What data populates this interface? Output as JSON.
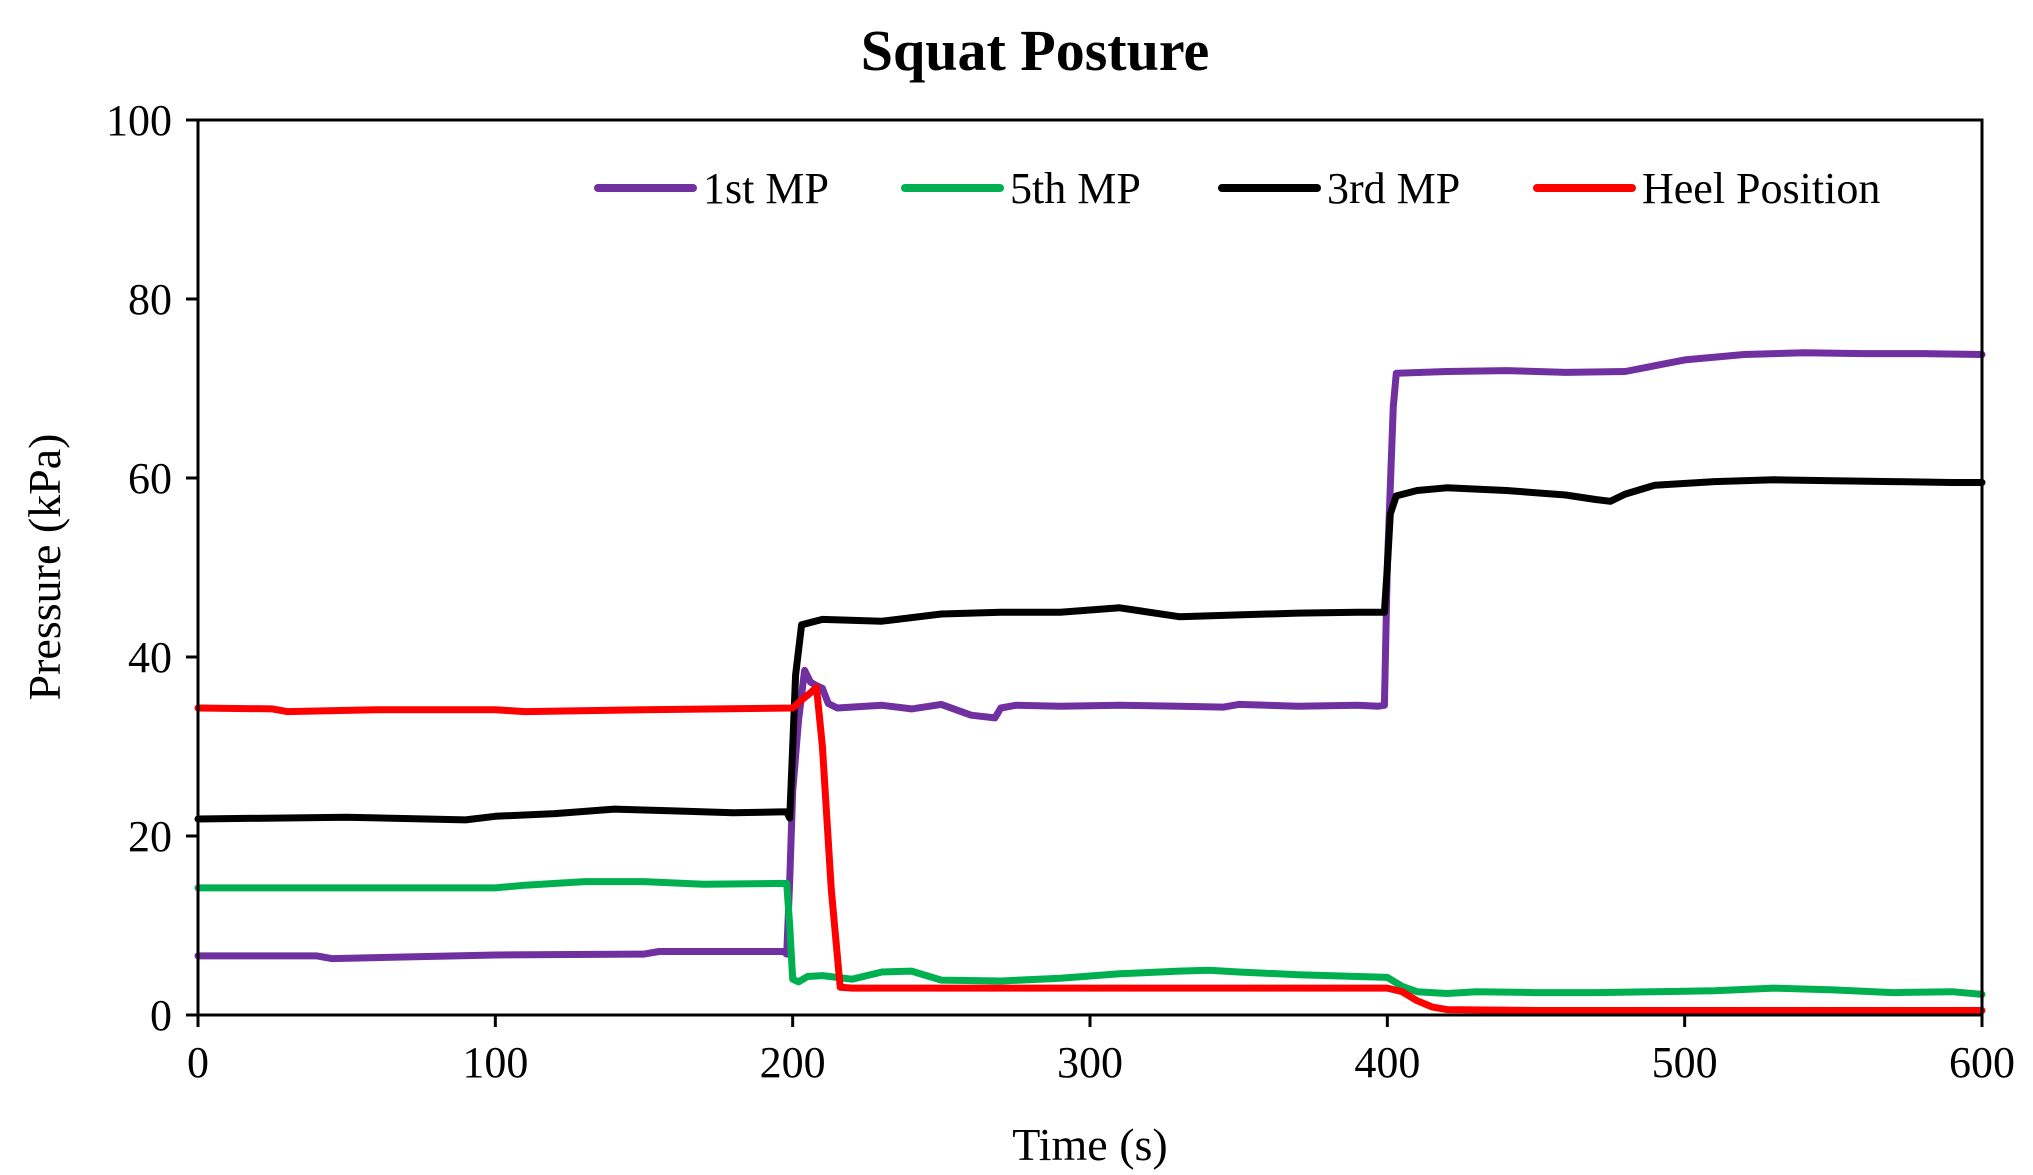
{
  "chart_data": {
    "type": "line",
    "title": "Squat Posture",
    "xlabel": "Time (s)",
    "ylabel": "Pressure (kPa)",
    "xlim": [
      0,
      600
    ],
    "ylim": [
      0,
      100
    ],
    "xticks": [
      0,
      100,
      200,
      300,
      400,
      500,
      600
    ],
    "yticks": [
      0,
      20,
      40,
      60,
      80,
      100
    ],
    "grid": false,
    "legend_position": "top-right",
    "series": [
      {
        "name": "1st MP",
        "color": "#7030A0",
        "x": [
          0,
          40,
          45,
          100,
          150,
          155,
          197,
          198,
          199,
          200,
          202,
          204,
          206,
          208,
          210,
          212,
          215,
          230,
          240,
          250,
          260,
          268,
          270,
          275,
          290,
          310,
          330,
          345,
          350,
          370,
          390,
          397,
          399,
          400,
          402,
          403,
          420,
          440,
          460,
          480,
          500,
          520,
          540,
          560,
          580,
          600
        ],
        "y": [
          6.6,
          6.6,
          6.3,
          6.7,
          6.8,
          7.1,
          7.1,
          6.8,
          15,
          25,
          33,
          38.5,
          37.2,
          36.8,
          36.5,
          34.8,
          34.3,
          34.6,
          34.2,
          34.7,
          33.5,
          33.2,
          34.3,
          34.6,
          34.5,
          34.6,
          34.5,
          34.4,
          34.7,
          34.5,
          34.6,
          34.5,
          34.6,
          50,
          68,
          71.7,
          71.9,
          72,
          71.8,
          71.9,
          73.2,
          73.8,
          74,
          73.9,
          73.9,
          73.8
        ]
      },
      {
        "name": "5th MP",
        "color": "#00B050",
        "x": [
          0,
          100,
          110,
          130,
          150,
          170,
          198,
          199,
          200,
          202,
          205,
          210,
          220,
          230,
          240,
          250,
          270,
          290,
          310,
          330,
          340,
          350,
          370,
          390,
          400,
          405,
          410,
          420,
          430,
          450,
          470,
          490,
          510,
          530,
          550,
          570,
          590,
          600
        ],
        "y": [
          14.2,
          14.2,
          14.5,
          14.9,
          14.9,
          14.6,
          14.7,
          10,
          4,
          3.7,
          4.3,
          4.4,
          4.0,
          4.8,
          4.9,
          3.9,
          3.8,
          4.1,
          4.6,
          4.9,
          5.0,
          4.8,
          4.5,
          4.3,
          4.2,
          3.2,
          2.6,
          2.4,
          2.6,
          2.5,
          2.5,
          2.6,
          2.7,
          3.0,
          2.8,
          2.5,
          2.6,
          2.3
        ]
      },
      {
        "name": "3rd MP",
        "color": "#000000",
        "x": [
          0,
          50,
          90,
          100,
          120,
          140,
          160,
          180,
          198,
          199,
          200,
          201,
          203,
          210,
          230,
          250,
          270,
          290,
          310,
          330,
          350,
          370,
          390,
          399,
          400,
          401,
          403,
          410,
          420,
          440,
          460,
          470,
          475,
          480,
          490,
          510,
          530,
          550,
          570,
          590,
          600
        ],
        "y": [
          21.9,
          22.1,
          21.8,
          22.2,
          22.5,
          23.0,
          22.8,
          22.6,
          22.7,
          22.0,
          30,
          38,
          43.6,
          44.2,
          44.0,
          44.8,
          45.0,
          45.0,
          45.5,
          44.5,
          44.7,
          44.9,
          45.0,
          45.0,
          50,
          56,
          58.0,
          58.6,
          58.9,
          58.6,
          58.1,
          57.6,
          57.4,
          58.2,
          59.2,
          59.6,
          59.8,
          59.7,
          59.6,
          59.5,
          59.5
        ]
      },
      {
        "name": "Heel Position",
        "color": "#FF0000",
        "x": [
          0,
          25,
          30,
          60,
          100,
          110,
          150,
          200,
          203,
          206,
          208,
          210,
          213,
          216,
          220,
          250,
          300,
          350,
          400,
          405,
          410,
          415,
          420,
          450,
          500,
          550,
          600
        ],
        "y": [
          34.3,
          34.2,
          33.9,
          34.1,
          34.1,
          33.9,
          34.1,
          34.3,
          35.2,
          36.0,
          36.6,
          30,
          14,
          3.1,
          3.0,
          3.0,
          3.0,
          3.0,
          3.0,
          2.6,
          1.6,
          0.9,
          0.6,
          0.5,
          0.5,
          0.5,
          0.5
        ]
      }
    ]
  }
}
